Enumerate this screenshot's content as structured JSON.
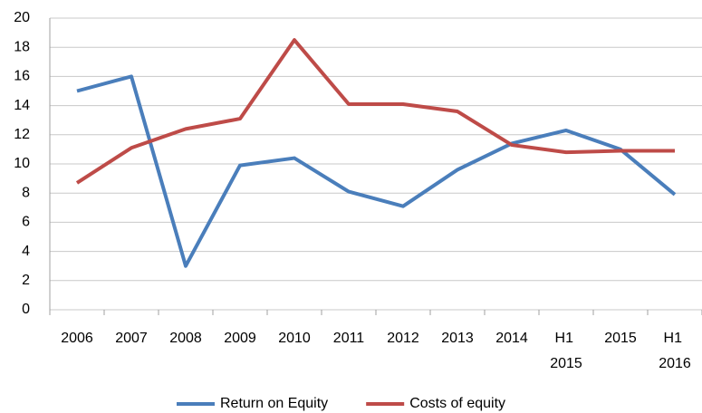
{
  "chart_data": {
    "type": "line",
    "categories": [
      "2006",
      "2007",
      "2008",
      "2009",
      "2010",
      "2011",
      "2012",
      "2013",
      "2014",
      "H1 2015",
      "2015",
      "H1 2016"
    ],
    "series": [
      {
        "name": "Return on Equity",
        "color": "#4a7ebb",
        "values": [
          15,
          16,
          3,
          9.9,
          10.4,
          8.1,
          7.1,
          9.6,
          11.4,
          12.3,
          11,
          7.9
        ]
      },
      {
        "name": "Costs of equity",
        "color": "#be4b48",
        "values": [
          8.7,
          11.1,
          12.4,
          13.1,
          18.5,
          14.1,
          14.1,
          13.6,
          11.3,
          10.8,
          10.9,
          10.9
        ]
      }
    ],
    "ylim": [
      0,
      20
    ],
    "yticks": [
      0,
      2,
      4,
      6,
      8,
      10,
      12,
      14,
      16,
      18,
      20
    ],
    "grid": true,
    "legend": "bottom"
  }
}
